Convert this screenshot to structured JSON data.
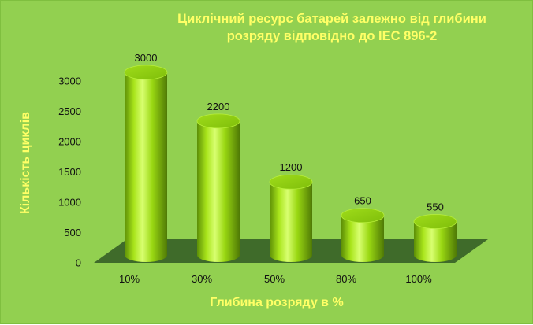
{
  "chart_data": {
    "type": "bar",
    "title_lines": [
      "Циклічний ресурс батарей залежно від глибини",
      "розряду відповідно до IEC 896-2"
    ],
    "xlabel": "Глибина розряду в %",
    "ylabel": "Кількість циклів",
    "categories": [
      "10%",
      "30%",
      "50%",
      "80%",
      "100%"
    ],
    "values": [
      3000,
      2200,
      1200,
      650,
      550
    ],
    "data_labels": [
      "3000",
      "2200",
      "1200",
      "650",
      "550"
    ],
    "y_ticks": [
      "0",
      "500",
      "1000",
      "1500",
      "2000",
      "2500",
      "3000"
    ],
    "ylim": [
      0,
      3000
    ],
    "grid": false,
    "legend": "none",
    "style": "3d-cylinder",
    "colors": {
      "background": "#92d050",
      "floor": "#3f6b2a",
      "bar": "#99dd11",
      "bar_dark": "#5d8f06",
      "bar_light": "#d8ff70",
      "text_accent": "#ffff66"
    }
  }
}
